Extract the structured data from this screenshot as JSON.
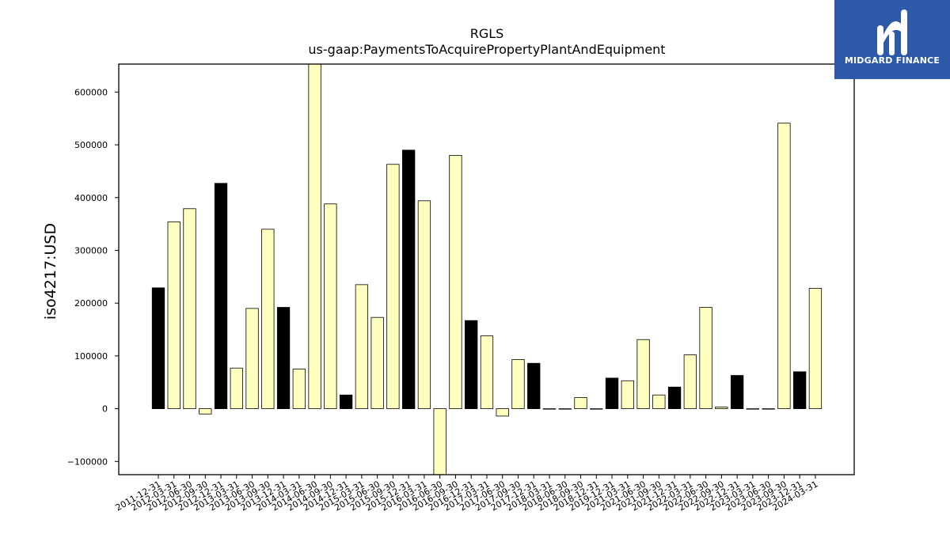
{
  "chart_data": {
    "type": "bar",
    "title": "RGLS",
    "subtitle": "us-gaap:PaymentsToAcquirePropertyPlantAndEquipment",
    "xlabel": "",
    "ylabel": "iso4217:USD",
    "ylim": [
      -125000,
      653000
    ],
    "yticks": [
      -100000,
      0,
      100000,
      200000,
      300000,
      400000,
      500000,
      600000
    ],
    "grid": false,
    "categories": [
      "2011-12-31",
      "2012-03-31",
      "2012-06-30",
      "2012-09-30",
      "2012-12-31",
      "2013-03-31",
      "2013-06-30",
      "2013-09-30",
      "2013-12-31",
      "2014-03-31",
      "2014-06-30",
      "2014-09-30",
      "2014-12-31",
      "2015-03-31",
      "2015-06-30",
      "2015-09-30",
      "2015-12-31",
      "2016-03-31",
      "2016-06-30",
      "2016-09-30",
      "2016-12-31",
      "2017-03-31",
      "2017-06-30",
      "2017-09-30",
      "2017-12-31",
      "2018-03-31",
      "2018-06-30",
      "2018-09-30",
      "2018-12-31",
      "2019-12-31",
      "2021-03-31",
      "2021-06-30",
      "2021-09-30",
      "2021-12-31",
      "2022-03-31",
      "2022-06-30",
      "2022-09-30",
      "2022-12-31",
      "2023-03-31",
      "2023-06-30",
      "2023-09-30",
      "2023-12-31",
      "2024-03-31"
    ],
    "values": [
      229000,
      354000,
      379000,
      -10000,
      427000,
      77000,
      190000,
      340000,
      192000,
      75000,
      660000,
      388000,
      26000,
      235000,
      173000,
      463000,
      490000,
      394000,
      -130000,
      480000,
      167000,
      138000,
      -14000,
      93000,
      86000,
      0,
      0,
      21000,
      0,
      58000,
      53000,
      131000,
      26000,
      41000,
      102000,
      192000,
      3000,
      63000,
      0,
      0,
      541000,
      70000,
      228000
    ],
    "bar_colors": [
      "#000000",
      "#ffffc0",
      "#ffffc0",
      "#ffffc0",
      "#000000",
      "#ffffc0",
      "#ffffc0",
      "#ffffc0",
      "#000000",
      "#ffffc0",
      "#ffffc0",
      "#ffffc0",
      "#000000",
      "#ffffc0",
      "#ffffc0",
      "#ffffc0",
      "#000000",
      "#ffffc0",
      "#ffffc0",
      "#ffffc0",
      "#000000",
      "#ffffc0",
      "#ffffc0",
      "#ffffc0",
      "#000000",
      "#ffffc0",
      "#ffffc0",
      "#ffffc0",
      "#ffffc0",
      "#000000",
      "#ffffc0",
      "#ffffc0",
      "#ffffc0",
      "#000000",
      "#ffffc0",
      "#ffffc0",
      "#ffffc0",
      "#000000",
      "#ffffc0",
      "#ffffc0",
      "#ffffc0",
      "#000000",
      "#ffffc0"
    ]
  },
  "logo": {
    "text": "MIDGARD FINANCE",
    "background": "#2c5aa8"
  }
}
